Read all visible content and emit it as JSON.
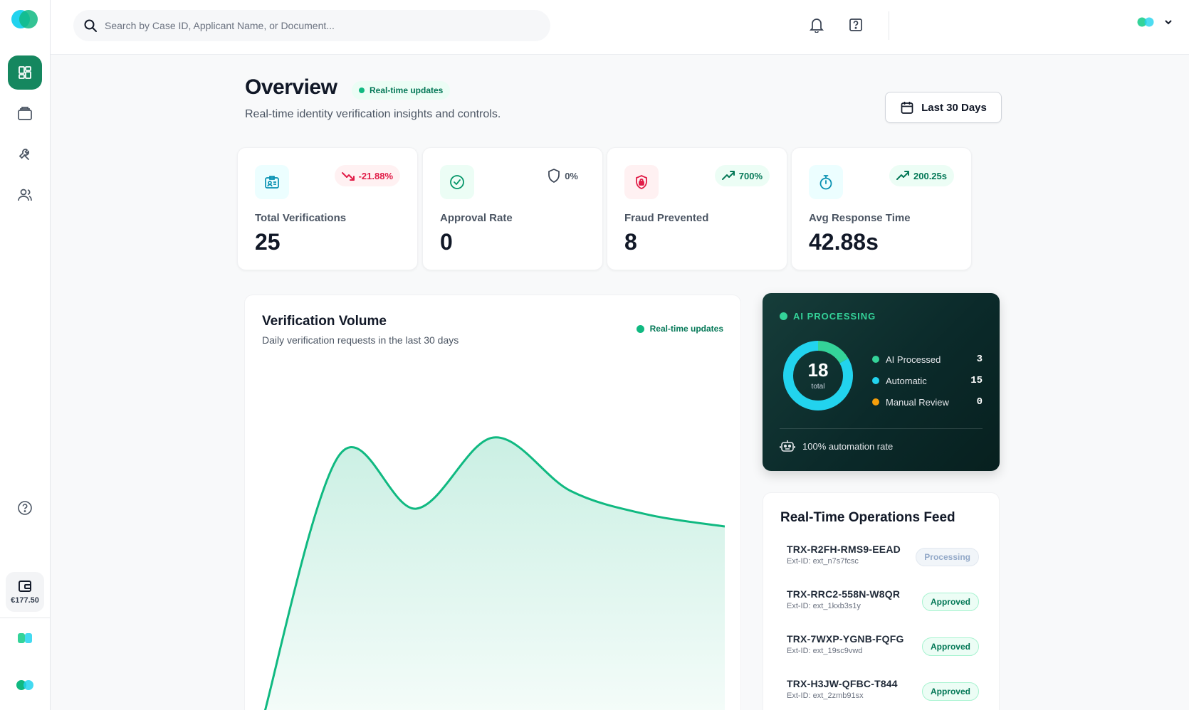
{
  "search": {
    "placeholder": "Search by Case ID, Applicant Name, or Document..."
  },
  "sidebar": {
    "items": [
      {
        "icon": "dashboard-icon",
        "active": true
      },
      {
        "icon": "briefcase-icon",
        "active": false
      },
      {
        "icon": "wrench-icon",
        "active": false
      },
      {
        "icon": "users-icon",
        "active": false
      }
    ],
    "wallet_amount": "€177.50"
  },
  "header": {
    "title": "Overview",
    "live_label": "Real-time updates",
    "subtitle": "Real-time identity verification insights and controls.",
    "date_range": "Last 30 Days"
  },
  "stats": [
    {
      "label": "Total Verifications",
      "value": "25",
      "change": "-21.88%",
      "trend": "down",
      "icon": "id-card-icon",
      "color": "#0891b2"
    },
    {
      "label": "Approval Rate",
      "value": "0",
      "change": "0%",
      "trend": "neutral",
      "icon": "check-circle-icon",
      "color": "#059669"
    },
    {
      "label": "Fraud Prevented",
      "value": "8",
      "change": "700%",
      "trend": "up",
      "icon": "shield-lock-icon",
      "color": "#e11d48"
    },
    {
      "label": "Avg Response Time",
      "value": "42.88s",
      "change": "200.25s",
      "trend": "up",
      "icon": "stopwatch-icon",
      "color": "#0891b2"
    }
  ],
  "volume": {
    "title": "Verification Volume",
    "subtitle": "Daily verification requests in the last 30 days",
    "live_label": "Real-time updates"
  },
  "chart_data": {
    "type": "area",
    "title": "Verification Volume",
    "x": [
      0,
      1,
      2,
      3,
      4,
      5,
      6
    ],
    "values": [
      0,
      9,
      7.2,
      9.6,
      7.8,
      7,
      6.6
    ],
    "ylim": [
      0,
      12
    ],
    "color": "#10b981"
  },
  "ai": {
    "heading": "AI PROCESSING",
    "total": "18",
    "total_label": "total",
    "breakdown": [
      {
        "label": "AI Processed",
        "value": 3,
        "color": "#34d399"
      },
      {
        "label": "Automatic",
        "value": 15,
        "color": "#22d3ee"
      },
      {
        "label": "Manual Review",
        "value": 0,
        "color": "#f59e0b"
      }
    ],
    "footer": "100% automation rate"
  },
  "feed": {
    "title": "Real-Time Operations Feed",
    "items": [
      {
        "id": "TRX-R2FH-RMS9-EEAD",
        "ext": "Ext-ID: ext_n7s7fcsc",
        "status": "Processing"
      },
      {
        "id": "TRX-RRC2-558N-W8QR",
        "ext": "Ext-ID: ext_1kxb3s1y",
        "status": "Approved"
      },
      {
        "id": "TRX-7WXP-YGNB-FQFG",
        "ext": "Ext-ID: ext_19sc9vwd",
        "status": "Approved"
      },
      {
        "id": "TRX-H3JW-QFBC-T844",
        "ext": "Ext-ID: ext_2zmb91sx",
        "status": "Approved"
      }
    ]
  }
}
